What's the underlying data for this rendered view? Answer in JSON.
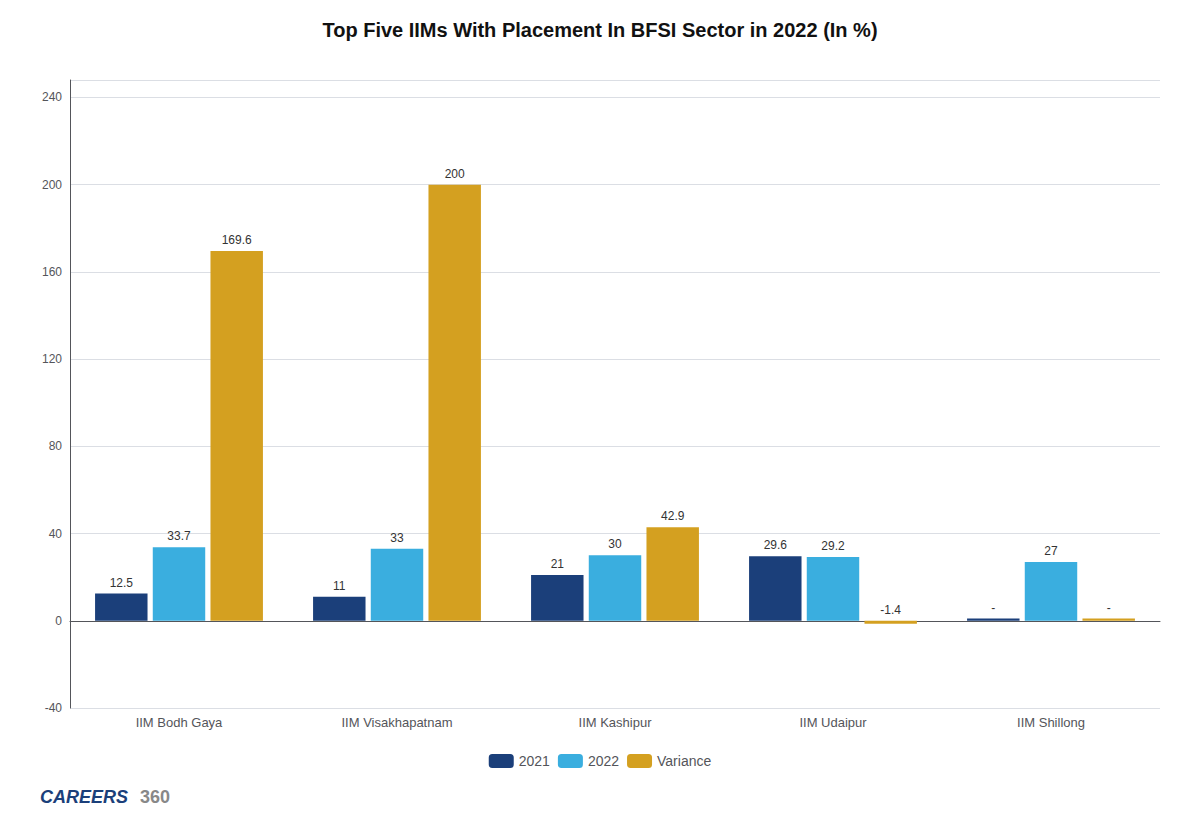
{
  "chart_data": {
    "type": "bar",
    "title": "Top Five IIMs With Placement In BFSI Sector in 2022 (In %)",
    "categories": [
      "IIM Bodh Gaya",
      "IIM Visakhapatnam",
      "IIM Kashipur",
      "IIM Udaipur",
      "IIM Shillong"
    ],
    "series": [
      {
        "name": "2021",
        "color": "#1b3f7a",
        "values": [
          12.5,
          11,
          21,
          29.6,
          1.0
        ],
        "value_labels": [
          "12.5",
          "11",
          "21",
          "29.6",
          "-"
        ]
      },
      {
        "name": "2022",
        "color": "#3aaedf",
        "values": [
          33.7,
          33,
          30,
          29.2,
          27
        ],
        "value_labels": [
          "33.7",
          "33",
          "30",
          "29.2",
          "27"
        ]
      },
      {
        "name": "Variance",
        "color": "#d4a020",
        "values": [
          169.6,
          200,
          42.9,
          -1.4,
          1.0
        ],
        "value_labels": [
          "169.6",
          "200",
          "42.9",
          "-1.4",
          "-"
        ]
      }
    ],
    "ylim": [
      -40,
      248
    ],
    "yticks": [
      -40,
      0,
      40,
      80,
      120,
      160,
      200,
      240
    ],
    "grid": true,
    "legend": "bottom",
    "data_labels": true,
    "annotations": [
      "CAREERS",
      "360"
    ]
  }
}
